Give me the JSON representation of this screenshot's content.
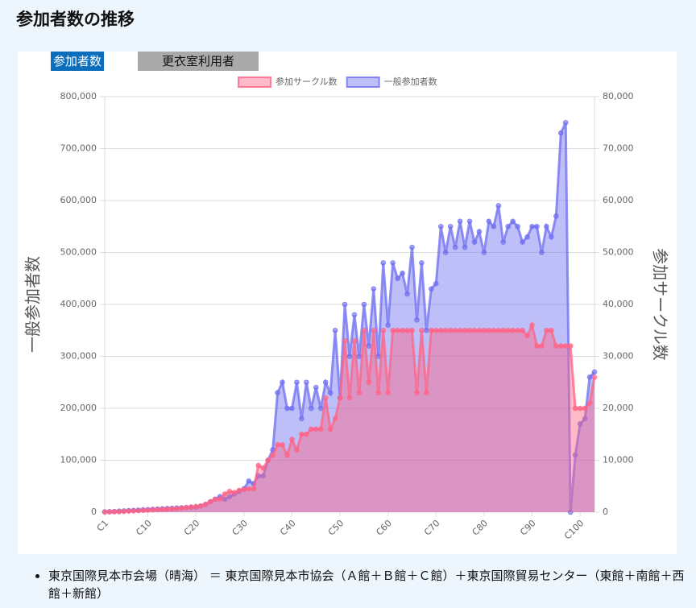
{
  "page": {
    "title": "参加者数の推移",
    "tabs": [
      "参加者数",
      "更衣室利用者"
    ],
    "notes": [
      "東京国際見本市会場（晴海） ＝ 東京国際見本市協会（Ａ館＋Ｂ館＋Ｃ館）＋東京国際貿易センター（東館＋南館＋西館＋新館）"
    ]
  },
  "chart_data": {
    "type": "line",
    "area": true,
    "legend": "top",
    "y_axis_label": "一般参加者数",
    "y2_axis_label": "参加サークル数",
    "categories": [
      "C1",
      null,
      null,
      null,
      null,
      null,
      null,
      null,
      null,
      "C10",
      null,
      null,
      null,
      null,
      null,
      null,
      null,
      null,
      null,
      "C20",
      null,
      null,
      null,
      null,
      null,
      null,
      null,
      null,
      null,
      "C30",
      null,
      null,
      null,
      null,
      null,
      null,
      null,
      null,
      null,
      "C40",
      null,
      null,
      null,
      null,
      null,
      null,
      null,
      null,
      null,
      "C50",
      null,
      null,
      null,
      null,
      null,
      null,
      null,
      null,
      null,
      "C60",
      null,
      null,
      null,
      null,
      null,
      null,
      null,
      null,
      null,
      "C70",
      null,
      null,
      null,
      null,
      null,
      null,
      null,
      null,
      null,
      "C80",
      null,
      null,
      null,
      null,
      null,
      null,
      null,
      null,
      null,
      "C90",
      null,
      null,
      null,
      null,
      null,
      null,
      null,
      null,
      null,
      "C100",
      null,
      null,
      null
    ],
    "series": [
      {
        "name": "参加サークル数",
        "color": "#ff6384",
        "axis": "y2",
        "values": [
          32,
          50,
          80,
          100,
          150,
          200,
          250,
          300,
          350,
          400,
          450,
          500,
          550,
          600,
          650,
          700,
          800,
          900,
          1000,
          1100,
          1200,
          1500,
          2000,
          2500,
          2500,
          3500,
          4000,
          3800,
          4200,
          4400,
          4500,
          4500,
          9000,
          8500,
          10000,
          11000,
          13000,
          13000,
          11000,
          14000,
          12000,
          15000,
          15000,
          16000,
          16000,
          16000,
          22000,
          16000,
          18000,
          22000,
          33000,
          22000,
          33000,
          23000,
          35000,
          25000,
          35000,
          23000,
          35000,
          23000,
          35000,
          35000,
          35000,
          35000,
          35000,
          23000,
          35000,
          23000,
          35000,
          35000,
          35000,
          35000,
          35000,
          35000,
          35000,
          35000,
          35000,
          35000,
          35000,
          35000,
          35000,
          35000,
          35000,
          35000,
          35000,
          35000,
          35000,
          35000,
          34000,
          36000,
          32000,
          32000,
          35000,
          35000,
          32000,
          32000,
          32000,
          32000,
          20000,
          20000,
          20000,
          21000,
          26000
        ]
      },
      {
        "name": "一般参加者数",
        "color": "#6e6ef0",
        "values": [
          700,
          1000,
          1500,
          2000,
          2500,
          3000,
          3500,
          4000,
          4500,
          5000,
          5500,
          6000,
          6500,
          7000,
          7500,
          8000,
          8500,
          9000,
          9500,
          10000,
          12000,
          15000,
          20000,
          25000,
          30000,
          25000,
          30000,
          35000,
          40000,
          45000,
          60000,
          55000,
          70000,
          70000,
          100000,
          120000,
          230000,
          250000,
          200000,
          200000,
          250000,
          180000,
          250000,
          200000,
          240000,
          200000,
          250000,
          230000,
          350000,
          220000,
          400000,
          300000,
          380000,
          300000,
          400000,
          320000,
          430000,
          300000,
          480000,
          360000,
          480000,
          450000,
          460000,
          420000,
          510000,
          370000,
          480000,
          350000,
          430000,
          440000,
          550000,
          500000,
          550000,
          510000,
          560000,
          510000,
          560000,
          520000,
          540000,
          500000,
          560000,
          550000,
          590000,
          520000,
          550000,
          560000,
          550000,
          520000,
          530000,
          550000,
          550000,
          500000,
          550000,
          530000,
          570000,
          730000,
          750000,
          0,
          110000,
          170000,
          180000,
          260000,
          270000
        ]
      }
    ],
    "ylim": [
      0,
      800000
    ],
    "yticks": [
      0,
      {
        "value": 100000,
        "label": "100,000"
      },
      {
        "value": 200000,
        "label": "200,000"
      },
      {
        "value": 300000,
        "label": "300,000"
      },
      {
        "value": 400000,
        "label": "400,000"
      },
      {
        "value": 500000,
        "label": "500,000"
      },
      {
        "value": 600000,
        "label": "600,000"
      },
      {
        "value": 700000,
        "label": "700,000"
      },
      {
        "value": 800000,
        "label": "800,000"
      }
    ],
    "y2lim": [
      0,
      80000
    ],
    "y2ticks": [
      0,
      {
        "value": 10000,
        "label": "10,000"
      },
      {
        "value": 20000,
        "label": "20,000"
      },
      {
        "value": 30000,
        "label": "30,000"
      },
      {
        "value": 40000,
        "label": "40,000"
      },
      {
        "value": 50000,
        "label": "50,000"
      },
      {
        "value": 60000,
        "label": "60,000"
      },
      {
        "value": 70000,
        "label": "70,000"
      },
      {
        "value": 80000,
        "label": "80,000"
      }
    ],
    "grid": true
  }
}
